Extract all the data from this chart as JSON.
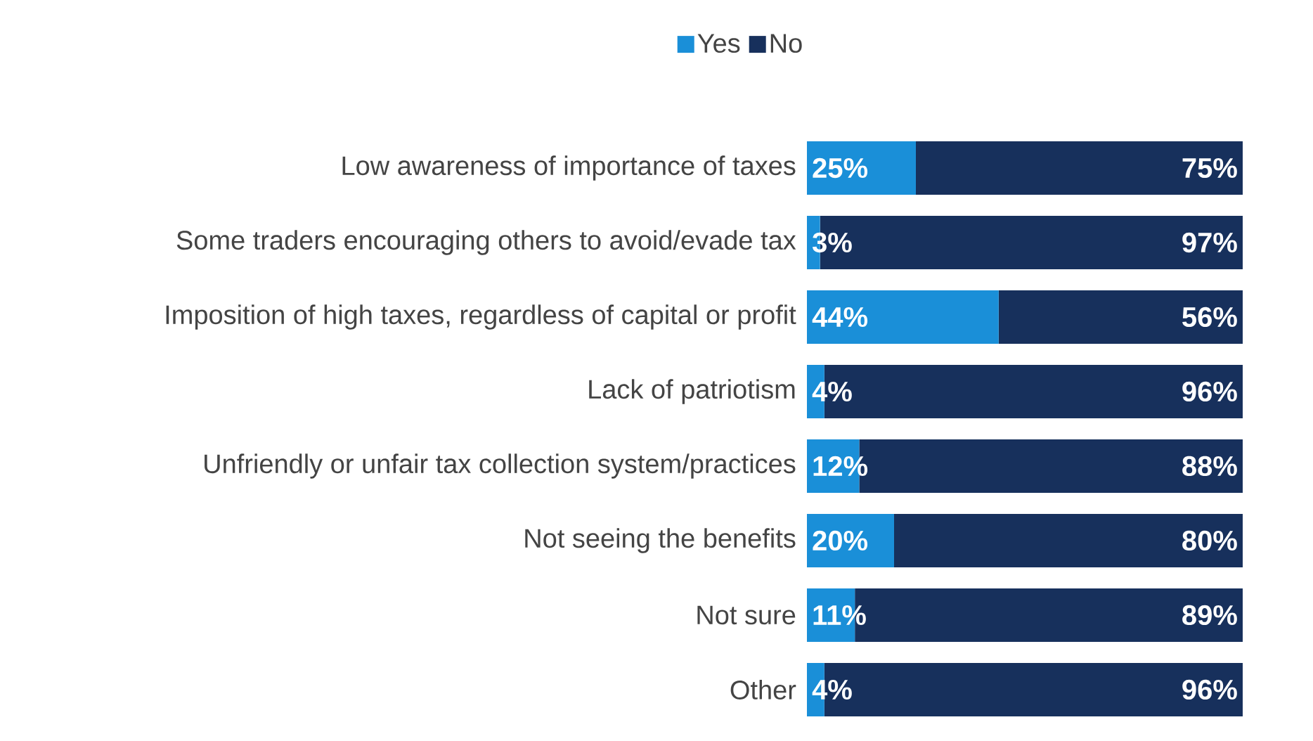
{
  "chart_data": {
    "type": "bar",
    "orientation": "horizontal",
    "stacked": true,
    "legend": "top",
    "tick_labels": "y",
    "categories": [
      "Low awareness of importance of taxes",
      "Some traders encouraging others to avoid/evade tax",
      "Imposition of high taxes, regardless of capital or profit",
      "Lack of patriotism",
      "Unfriendly or unfair tax collection system/practices",
      "Not seeing the benefits",
      "Not sure",
      "Other"
    ],
    "series": [
      {
        "name": "Yes",
        "color": "#1a8fd8",
        "values": [
          25,
          3,
          44,
          4,
          12,
          20,
          11,
          4
        ],
        "value_labels": [
          "25%",
          "3%",
          "44%",
          "4%",
          "12%",
          "20%",
          "11%",
          "4%"
        ]
      },
      {
        "name": "No",
        "color": "#17305c",
        "values": [
          75,
          97,
          56,
          96,
          88,
          80,
          89,
          96
        ],
        "value_labels": [
          "75%",
          "97%",
          "56%",
          "96%",
          "88%",
          "80%",
          "89%",
          "96%"
        ]
      }
    ]
  }
}
